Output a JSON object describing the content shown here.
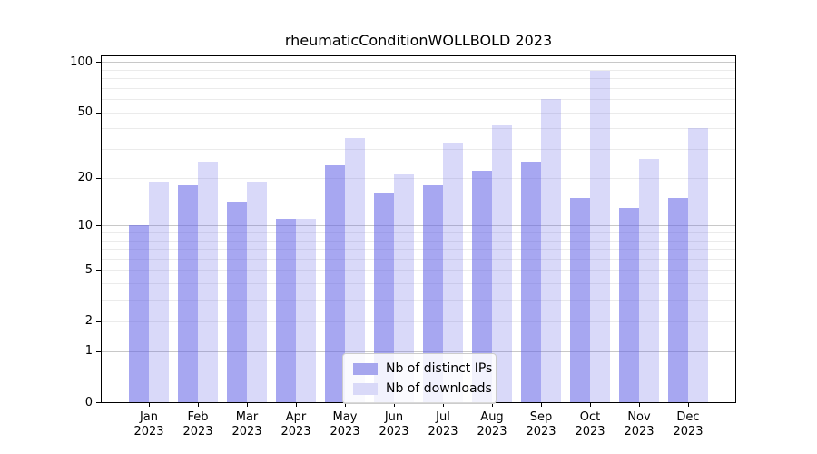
{
  "chart_data": {
    "type": "bar",
    "title": "rheumaticConditionWOLLBOLD 2023",
    "categories": [
      "Jan",
      "Feb",
      "Mar",
      "Apr",
      "May",
      "Jun",
      "Jul",
      "Aug",
      "Sep",
      "Oct",
      "Nov",
      "Dec"
    ],
    "x_tick_year": "2023",
    "series": [
      {
        "name": "Nb of distinct IPs",
        "values": [
          10,
          18,
          14,
          11,
          24,
          16,
          18,
          22,
          25,
          15,
          13,
          15
        ],
        "color": "#a6a6ee",
        "fill": "rgba(100,100,230,0.57)"
      },
      {
        "name": "Nb of downloads",
        "values": [
          19,
          25,
          19,
          11,
          35,
          21,
          33,
          42,
          60,
          89,
          26,
          40
        ],
        "color": "#d9d9f8",
        "fill": "rgba(100,100,230,0.245)"
      }
    ],
    "y_axis": {
      "scale": "log10(value+1)",
      "ylim": [
        0,
        108
      ],
      "tick_values": [
        0,
        1,
        2,
        5,
        10,
        20,
        50,
        100
      ],
      "tick_labels": [
        "0",
        "1",
        "2",
        "5",
        "10",
        "20",
        "50",
        "100"
      ],
      "major_gridline_values": [
        1,
        10,
        100
      ],
      "minor_gridline_values": [
        2,
        3,
        4,
        5,
        6,
        7,
        8,
        9,
        20,
        30,
        40,
        50,
        60,
        70,
        80,
        90
      ],
      "grid": true
    },
    "legend": {
      "position": "lower center"
    }
  },
  "colors": {
    "major_grid": "#c8c8c8",
    "minor_grid": "#ebebeb",
    "axis": "#000000",
    "legend_border": "#cccccc"
  }
}
